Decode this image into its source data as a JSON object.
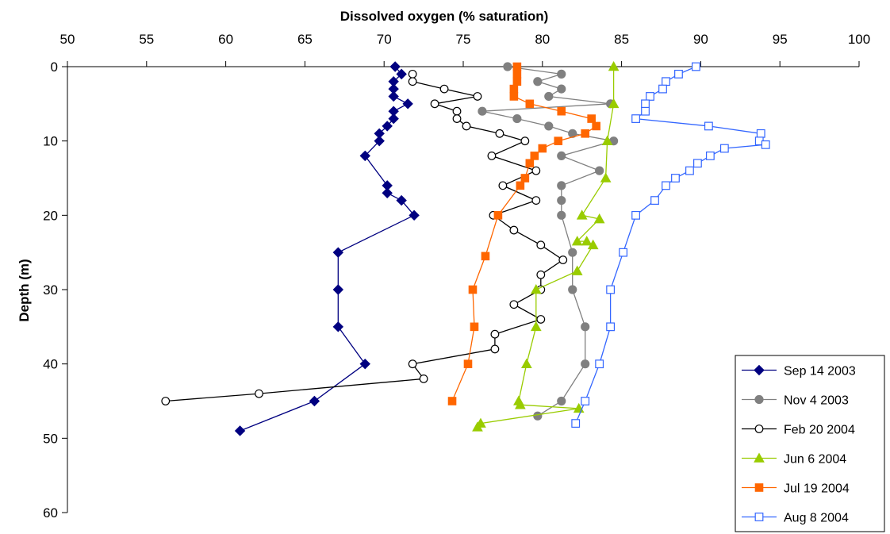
{
  "chart_data": {
    "type": "scatter",
    "title": "",
    "xlabel": "Dissolved oxygen (% saturation)",
    "ylabel": "Depth (m)",
    "xlim": [
      50,
      100
    ],
    "ylim": [
      0,
      60
    ],
    "x_axis_position": "top",
    "y_axis_inverted": true,
    "x_ticks": [
      "50",
      "55",
      "60",
      "65",
      "70",
      "75",
      "80",
      "85",
      "90",
      "95",
      "100"
    ],
    "y_ticks": [
      "0",
      "10",
      "20",
      "30",
      "40",
      "50",
      "60"
    ],
    "grid": false,
    "legend_position": "bottom-right",
    "series": [
      {
        "name": "Sep 14 2003",
        "color": "#000080",
        "marker": "diamond-filled",
        "points": [
          [
            70.7,
            0
          ],
          [
            71.1,
            1
          ],
          [
            70.6,
            2
          ],
          [
            70.6,
            3
          ],
          [
            70.6,
            4
          ],
          [
            71.5,
            5
          ],
          [
            70.6,
            6
          ],
          [
            70.6,
            7
          ],
          [
            70.2,
            8
          ],
          [
            69.7,
            9
          ],
          [
            69.7,
            10
          ],
          [
            68.8,
            12
          ],
          [
            70.2,
            16
          ],
          [
            70.2,
            17
          ],
          [
            71.1,
            18
          ],
          [
            71.9,
            20
          ],
          [
            67.1,
            25
          ],
          [
            67.1,
            30
          ],
          [
            67.1,
            35
          ],
          [
            68.8,
            40
          ],
          [
            65.6,
            45
          ],
          [
            60.9,
            49
          ]
        ]
      },
      {
        "name": "Nov 4 2003",
        "color": "#808080",
        "marker": "circle-filled",
        "points": [
          [
            77.8,
            0
          ],
          [
            81.2,
            1
          ],
          [
            79.7,
            2
          ],
          [
            81.2,
            3
          ],
          [
            80.4,
            4
          ],
          [
            84.3,
            5
          ],
          [
            76.2,
            6
          ],
          [
            78.4,
            7
          ],
          [
            80.4,
            8
          ],
          [
            81.9,
            9
          ],
          [
            84.5,
            10
          ],
          [
            81.2,
            12
          ],
          [
            83.6,
            14
          ],
          [
            81.2,
            16
          ],
          [
            81.2,
            18
          ],
          [
            81.2,
            20
          ],
          [
            81.9,
            25
          ],
          [
            81.9,
            30
          ],
          [
            82.7,
            35
          ],
          [
            82.7,
            40
          ],
          [
            81.2,
            45
          ],
          [
            79.7,
            47
          ]
        ]
      },
      {
        "name": "Feb 20 2004",
        "color": "#000000",
        "marker": "circle-open",
        "points": [
          [
            71.8,
            1
          ],
          [
            71.8,
            2
          ],
          [
            73.8,
            3
          ],
          [
            75.9,
            4
          ],
          [
            73.2,
            5
          ],
          [
            74.6,
            6
          ],
          [
            74.6,
            7
          ],
          [
            75.2,
            8
          ],
          [
            77.3,
            9
          ],
          [
            78.9,
            10
          ],
          [
            76.8,
            12
          ],
          [
            79.6,
            14
          ],
          [
            77.5,
            16
          ],
          [
            79.6,
            18
          ],
          [
            76.9,
            20
          ],
          [
            78.2,
            22
          ],
          [
            79.9,
            24
          ],
          [
            81.3,
            26
          ],
          [
            79.9,
            28
          ],
          [
            79.9,
            30
          ],
          [
            78.2,
            32
          ],
          [
            79.9,
            34
          ],
          [
            77,
            36
          ],
          [
            77,
            38
          ],
          [
            71.8,
            40
          ],
          [
            72.5,
            42
          ],
          [
            62.1,
            44
          ],
          [
            56.2,
            45
          ]
        ]
      },
      {
        "name": "Jun 6 2004",
        "color": "#99CC00",
        "marker": "triangle-filled",
        "points": [
          [
            84.5,
            0
          ],
          [
            84.5,
            5
          ],
          [
            84.1,
            10
          ],
          [
            84,
            15
          ],
          [
            82.5,
            20
          ],
          [
            83.6,
            20.5
          ],
          [
            82.2,
            23.5
          ],
          [
            82.8,
            23.5
          ],
          [
            83.2,
            24
          ],
          [
            82.2,
            27.5
          ],
          [
            79.6,
            30
          ],
          [
            79.6,
            35
          ],
          [
            79,
            40
          ],
          [
            78.5,
            45
          ],
          [
            78.6,
            45.5
          ],
          [
            82.3,
            46
          ],
          [
            76.1,
            48
          ],
          [
            75.9,
            48.5
          ]
        ]
      },
      {
        "name": "Jul 19 2004",
        "color": "#FF6600",
        "marker": "square-filled",
        "points": [
          [
            78.4,
            0
          ],
          [
            78.4,
            1
          ],
          [
            78.4,
            2
          ],
          [
            78.2,
            3
          ],
          [
            78.2,
            4
          ],
          [
            79.2,
            5
          ],
          [
            81.2,
            6
          ],
          [
            83.1,
            7
          ],
          [
            83.4,
            8
          ],
          [
            82.7,
            9
          ],
          [
            81,
            10
          ],
          [
            80,
            11
          ],
          [
            79.5,
            12
          ],
          [
            79.2,
            13
          ],
          [
            78.9,
            15
          ],
          [
            78.6,
            16
          ],
          [
            77.2,
            20
          ],
          [
            76.4,
            25.5
          ],
          [
            75.6,
            30
          ],
          [
            75.7,
            35
          ],
          [
            75.3,
            40
          ],
          [
            74.3,
            45
          ]
        ]
      },
      {
        "name": "Aug 8 2004",
        "color": "#3366FF",
        "marker": "square-open",
        "points": [
          [
            89.7,
            0
          ],
          [
            88.6,
            1
          ],
          [
            87.8,
            2
          ],
          [
            87.6,
            3
          ],
          [
            86.8,
            4
          ],
          [
            86.5,
            5
          ],
          [
            86.5,
            6
          ],
          [
            85.9,
            7
          ],
          [
            90.5,
            8
          ],
          [
            93.8,
            9
          ],
          [
            93.7,
            10
          ],
          [
            94.1,
            10.5
          ],
          [
            91.5,
            11
          ],
          [
            90.6,
            12
          ],
          [
            89.8,
            13
          ],
          [
            89.3,
            14
          ],
          [
            88.4,
            15
          ],
          [
            87.8,
            16
          ],
          [
            87.1,
            18
          ],
          [
            85.9,
            20
          ],
          [
            85.1,
            25
          ],
          [
            84.3,
            30
          ],
          [
            84.3,
            35
          ],
          [
            83.6,
            40
          ],
          [
            82.7,
            45
          ],
          [
            82.1,
            48
          ]
        ]
      }
    ]
  }
}
